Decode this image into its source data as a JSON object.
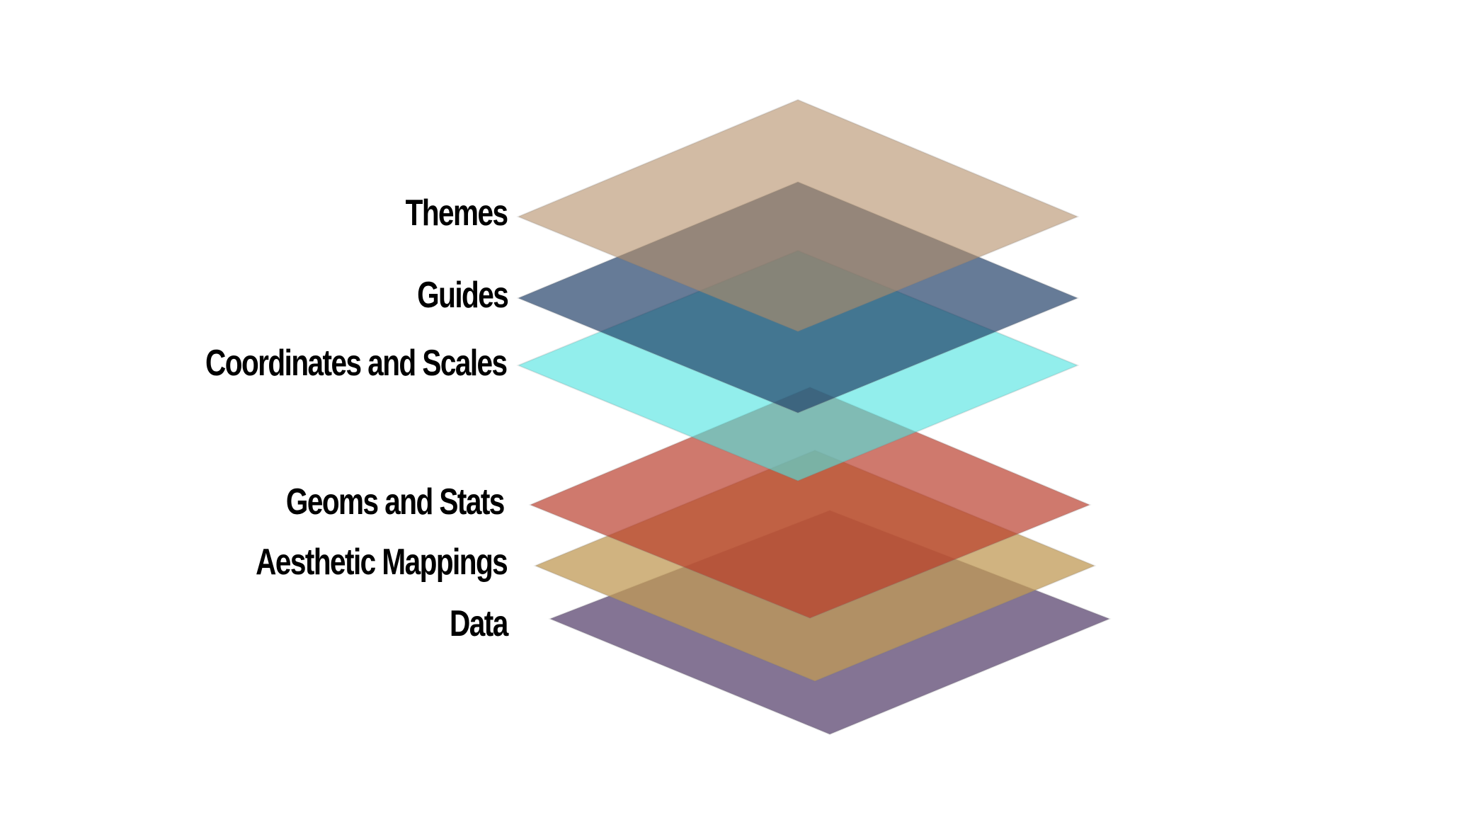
{
  "diagram": {
    "layers": [
      {
        "id": "data",
        "label": "Data",
        "color": "#5b4570",
        "opacity": 0.75
      },
      {
        "id": "aesthetic-mappings",
        "label": "Aesthetic Mappings",
        "color": "#c09a55",
        "opacity": 0.75
      },
      {
        "id": "geoms-and-stats",
        "label": "Geoms and Stats",
        "color": "#b83a28",
        "opacity": 0.68
      },
      {
        "id": "coordinates-and-scales",
        "label": "Coordinates and Scales",
        "color": "#4fe3e0",
        "opacity": 0.62
      },
      {
        "id": "guides",
        "label": "Guides",
        "color": "#1e3d66",
        "opacity": 0.68
      },
      {
        "id": "themes",
        "label": "Themes",
        "color": "#b48e68",
        "opacity": 0.6
      }
    ]
  }
}
